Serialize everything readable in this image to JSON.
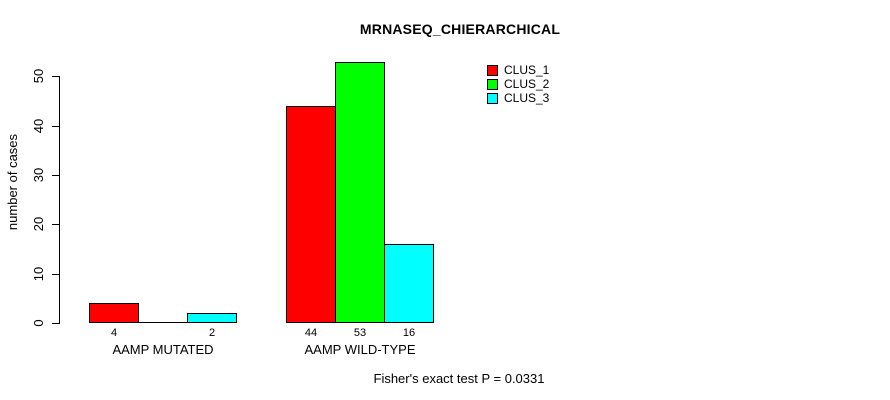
{
  "chart_data": {
    "type": "bar",
    "title": "MRNASEQ_CHIERARCHICAL",
    "ylabel": "number of cases",
    "xlabel": "",
    "categories": [
      "AAMP MUTATED",
      "AAMP WILD-TYPE"
    ],
    "series": [
      {
        "name": "CLUS_1",
        "color": "#FF0000",
        "values": [
          4,
          44
        ]
      },
      {
        "name": "CLUS_2",
        "color": "#00FF00",
        "values": [
          0,
          53
        ]
      },
      {
        "name": "CLUS_3",
        "color": "#00FFFF",
        "values": [
          2,
          16
        ]
      }
    ],
    "bar_value_labels": [
      [
        "4",
        "",
        "2"
      ],
      [
        "44",
        "53",
        "16"
      ]
    ],
    "y_ticks": [
      0,
      10,
      20,
      30,
      40,
      50
    ],
    "ylim": [
      0,
      50
    ],
    "grid": false,
    "legend_position": "top-right",
    "bar_border_color": "#000000",
    "footnote": "Fisher's exact test P = 0.0331"
  }
}
